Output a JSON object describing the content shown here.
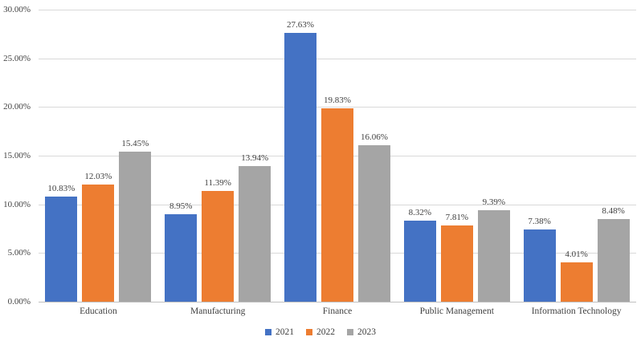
{
  "chart_data": {
    "type": "bar",
    "title": "",
    "xlabel": "",
    "ylabel": "",
    "categories": [
      "Education",
      "Manufacturing",
      "Finance",
      "Public Management",
      "Information Technology"
    ],
    "series": [
      {
        "name": "2021",
        "color": "#4472C4",
        "values": [
          10.83,
          8.95,
          27.63,
          8.32,
          7.38
        ]
      },
      {
        "name": "2022",
        "color": "#ED7D31",
        "values": [
          12.03,
          11.39,
          19.83,
          7.81,
          4.01
        ]
      },
      {
        "name": "2023",
        "color": "#A5A5A5",
        "values": [
          15.45,
          13.94,
          16.06,
          9.39,
          8.48
        ]
      }
    ],
    "data_labels": [
      [
        "10.83%",
        "8.95%",
        "27.63%",
        "8.32%",
        "7.38%"
      ],
      [
        "12.03%",
        "11.39%",
        "19.83%",
        "7.81%",
        "4.01%"
      ],
      [
        "15.45%",
        "13.94%",
        "16.06%",
        "9.39%",
        "8.48%"
      ]
    ],
    "ylim": [
      0,
      30
    ],
    "ytick_step": 5,
    "ytick_labels": [
      "0.00%",
      "5.00%",
      "10.00%",
      "15.00%",
      "20.00%",
      "25.00%",
      "30.00%"
    ],
    "grid": true,
    "legend_position": "bottom",
    "gridline_color": "#D9D9D9",
    "axis_line_color": "#BFBFBF",
    "text_color": "#404040"
  }
}
